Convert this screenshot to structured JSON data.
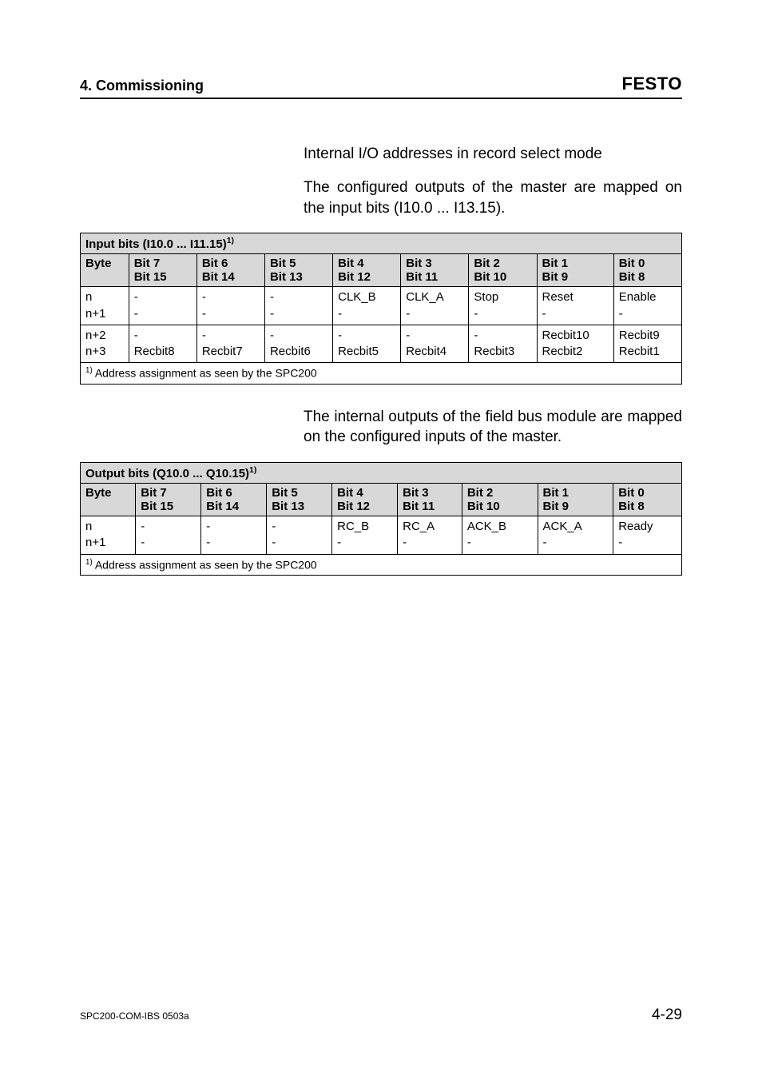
{
  "header": {
    "left": "4. Commissioning",
    "brand": "FESTO"
  },
  "section": {
    "title": "Internal I/O addresses in record select mode",
    "para1": "The configured outputs of the master are mapped on the input bits (I10.0 ... I13.15).",
    "para2": "The internal outputs of the field bus module are mapped on the configured inputs of the master."
  },
  "table1": {
    "title": "Input bits (I10.0 ... I11.15)",
    "title_sup": "1)",
    "byte_label": "Byte",
    "cols_top": [
      "Bit 7",
      "Bit 6",
      "Bit 5",
      "Bit 4",
      "Bit 3",
      "Bit 2",
      "Bit 1",
      "Bit 0"
    ],
    "cols_bot": [
      "Bit 15",
      "Bit 14",
      "Bit 13",
      "Bit 12",
      "Bit 11",
      "Bit 10",
      "Bit 9",
      "Bit 8"
    ],
    "row1": {
      "byte_a": "n",
      "byte_b": "n+1",
      "cells_a": [
        "-",
        "-",
        "-",
        "CLK_B",
        "CLK_A",
        "Stop",
        "Reset",
        "Enable"
      ],
      "cells_b": [
        "-",
        "-",
        "-",
        "-",
        "-",
        "-",
        "-",
        "-"
      ]
    },
    "row2": {
      "byte_a": "n+2",
      "byte_b": "n+3",
      "cells_a": [
        "-",
        "-",
        "-",
        "-",
        "-",
        "-",
        "Recbit10",
        "Recbit9"
      ],
      "cells_b": [
        "Recbit8",
        "Recbit7",
        "Recbit6",
        "Recbit5",
        "Recbit4",
        "Recbit3",
        "Recbit2",
        "Recbit1"
      ]
    },
    "footnote_sup": "1)",
    "footnote": " Address assignment as seen by the SPC200"
  },
  "table2": {
    "title": "Output bits (Q10.0 ... Q10.15)",
    "title_sup": "1)",
    "byte_label": "Byte",
    "cols_top": [
      "Bit 7",
      "Bit 6",
      "Bit 5",
      "Bit 4",
      "Bit 3",
      "Bit 2",
      "Bit 1",
      "Bit 0"
    ],
    "cols_bot": [
      "Bit 15",
      "Bit 14",
      "Bit 13",
      "Bit 12",
      "Bit 11",
      "Bit 10",
      "Bit 9",
      "Bit 8"
    ],
    "row1": {
      "byte_a": "n",
      "byte_b": "n+1",
      "cells_a": [
        "-",
        "-",
        "-",
        "RC_B",
        "RC_A",
        "ACK_B",
        "ACK_A",
        "Ready"
      ],
      "cells_b": [
        "-",
        "-",
        "-",
        "-",
        "-",
        "-",
        "-",
        "-"
      ]
    },
    "footnote_sup": "1)",
    "footnote": " Address assignment as seen by the SPC200"
  },
  "footer": {
    "left": "SPC200-COM-IBS  0503a",
    "right": "4-29"
  },
  "colors": {
    "header_bg": "#d8d8d8",
    "border": "#000000",
    "text": "#000000",
    "page_bg": "#ffffff"
  }
}
